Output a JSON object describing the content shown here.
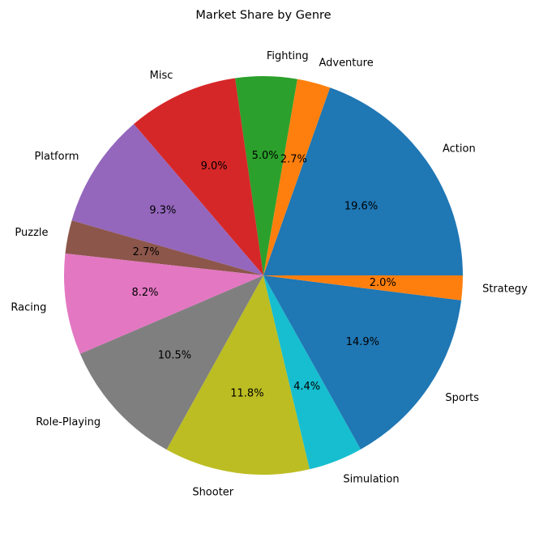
{
  "chart_data": {
    "type": "pie",
    "title": "Market Share by Genre",
    "start_angle_deg": 0,
    "direction": "counterclockwise",
    "slices": [
      {
        "label": "Action",
        "value": 19.6,
        "pct_text": "19.6%",
        "color": "#1f77b4"
      },
      {
        "label": "Adventure",
        "value": 2.7,
        "pct_text": "2.7%",
        "color": "#ff7f0e"
      },
      {
        "label": "Fighting",
        "value": 5.0,
        "pct_text": "5.0%",
        "color": "#2ca02c"
      },
      {
        "label": "Misc",
        "value": 9.0,
        "pct_text": "9.0%",
        "color": "#d62728"
      },
      {
        "label": "Platform",
        "value": 9.3,
        "pct_text": "9.3%",
        "color": "#9467bd"
      },
      {
        "label": "Puzzle",
        "value": 2.7,
        "pct_text": "2.7%",
        "color": "#8c564b"
      },
      {
        "label": "Racing",
        "value": 8.2,
        "pct_text": "8.2%",
        "color": "#e377c2"
      },
      {
        "label": "Role-Playing",
        "value": 10.5,
        "pct_text": "10.5%",
        "color": "#7f7f7f"
      },
      {
        "label": "Shooter",
        "value": 11.8,
        "pct_text": "11.8%",
        "color": "#bcbd22"
      },
      {
        "label": "Simulation",
        "value": 4.4,
        "pct_text": "4.4%",
        "color": "#17becf"
      },
      {
        "label": "Sports",
        "value": 14.9,
        "pct_text": "14.9%",
        "color": "#1f77b4"
      },
      {
        "label": "Strategy",
        "value": 2.0,
        "pct_text": "2.0%",
        "color": "#ff7f0e"
      }
    ]
  }
}
